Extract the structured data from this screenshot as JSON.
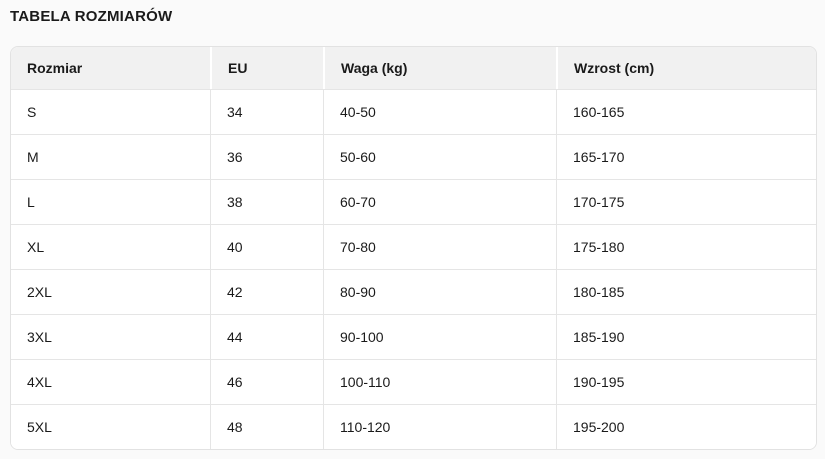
{
  "page": {
    "title": "TABELA ROZMIARÓW"
  },
  "table": {
    "columns": [
      "Rozmiar",
      "EU",
      "Waga (kg)",
      "Wzrost (cm)"
    ],
    "rows": [
      [
        "S",
        "34",
        "40-50",
        "160-165"
      ],
      [
        "M",
        "36",
        "50-60",
        "165-170"
      ],
      [
        "L",
        "38",
        "60-70",
        "170-175"
      ],
      [
        "XL",
        "40",
        "70-80",
        "175-180"
      ],
      [
        "2XL",
        "42",
        "80-90",
        "180-185"
      ],
      [
        "3XL",
        "44",
        "90-100",
        "185-190"
      ],
      [
        "4XL",
        "46",
        "100-110",
        "190-195"
      ],
      [
        "5XL",
        "48",
        "110-120",
        "195-200"
      ]
    ]
  },
  "colors": {
    "page_background": "#fafafa",
    "header_background": "#f1f1f1",
    "row_background": "#ffffff",
    "border": "#e2e2e2",
    "row_divider": "#e5e5e5",
    "header_divider": "#ffffff",
    "text": "#1a1a1a"
  }
}
